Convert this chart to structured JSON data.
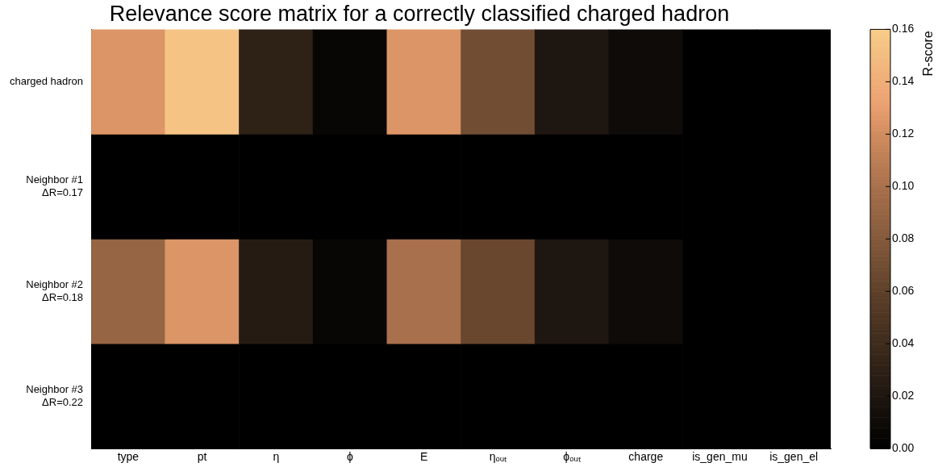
{
  "chart_data": {
    "type": "heatmap",
    "title": "Relevance score matrix for a correctly classified charged hadron",
    "categories": [
      "type",
      "pt",
      "η",
      "ϕ",
      "E",
      "ηₒᵤₜ",
      "ϕₒᵤₜ",
      "charge",
      "is_gen_mu",
      "is_gen_el"
    ],
    "y_categories": [
      "charged hadron",
      "Neighbor #1\nΔR=0.17",
      "Neighbor #2\nΔR=0.18",
      "Neighbor #3\nΔR=0.22"
    ],
    "cells": [
      [
        0.125,
        0.155,
        0.03,
        0.005,
        0.125,
        0.07,
        0.02,
        0.01,
        0,
        0
      ],
      [
        0,
        0,
        0,
        0,
        0,
        0,
        0,
        0,
        0,
        0
      ],
      [
        0.09,
        0.125,
        0.025,
        0.005,
        0.1,
        0.065,
        0.02,
        0.01,
        0,
        0
      ],
      [
        0,
        0,
        0,
        0,
        0,
        0,
        0,
        0,
        0,
        0
      ]
    ],
    "clim": [
      0,
      0.16
    ],
    "cticks": [
      {
        "value": 0,
        "label": "0.00"
      },
      {
        "value": 0.02,
        "label": "0.02"
      },
      {
        "value": 0.04,
        "label": "0.04"
      },
      {
        "value": 0.06,
        "label": "0.06"
      },
      {
        "value": 0.08,
        "label": "0.08"
      },
      {
        "value": 0.1,
        "label": "0.10"
      },
      {
        "value": 0.12,
        "label": "0.12"
      },
      {
        "value": 0.14,
        "label": "0.14"
      },
      {
        "value": 0.16,
        "label": "0.16"
      }
    ],
    "clabel": "R-score"
  }
}
